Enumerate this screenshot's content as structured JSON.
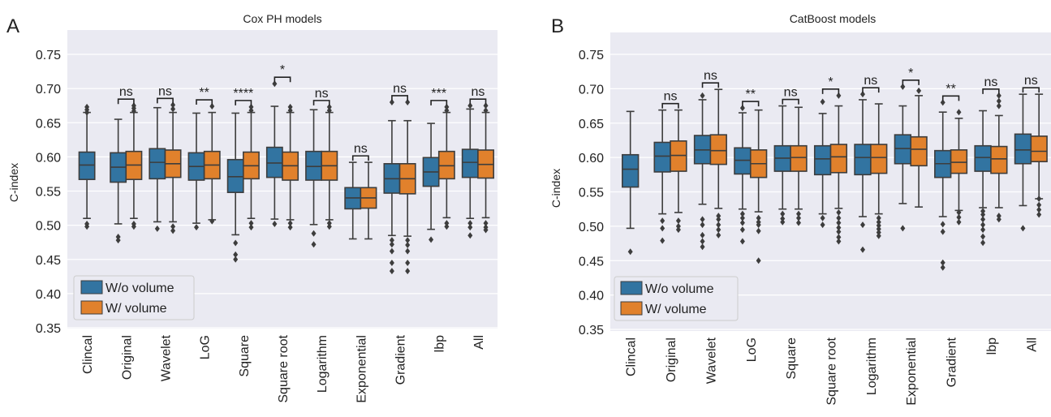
{
  "chart_data": [
    {
      "panel_letter": "A",
      "type": "box",
      "title": "Cox PH models",
      "xlabel": "",
      "ylabel": "C-index",
      "ylim": [
        0.35,
        0.77
      ],
      "yticks": [
        "0.35",
        "0.40",
        "0.45",
        "0.50",
        "0.55",
        "0.60",
        "0.65",
        "0.70",
        "0.75"
      ],
      "grid": true,
      "legend_position": "bottom-left",
      "categories": [
        "Clincal",
        "Original",
        "Wavelet",
        "LoG",
        "Square",
        "Square root",
        "Logarithm",
        "Exponential",
        "Gradient",
        "lbp",
        "All"
      ],
      "significance": [
        "",
        "ns",
        "ns",
        "**",
        "****",
        "*",
        "ns",
        "ns",
        "ns",
        "***",
        "ns"
      ],
      "series": [
        {
          "name": "W/o volume",
          "color": "#3274a1",
          "boxes": [
            {
              "min": 0.51,
              "q1": 0.567,
              "median": 0.588,
              "q3": 0.607,
              "max": 0.665,
              "outliers": [
                0.498,
                0.502,
                0.665,
                0.669,
                0.673
              ]
            },
            {
              "min": 0.502,
              "q1": 0.563,
              "median": 0.585,
              "q3": 0.606,
              "max": 0.655,
              "outliers": [
                0.478,
                0.483
              ]
            },
            {
              "min": 0.505,
              "q1": 0.568,
              "median": 0.592,
              "q3": 0.612,
              "max": 0.672,
              "outliers": [
                0.495
              ]
            },
            {
              "min": 0.503,
              "q1": 0.566,
              "median": 0.586,
              "q3": 0.606,
              "max": 0.664,
              "outliers": [
                0.497
              ]
            },
            {
              "min": 0.486,
              "q1": 0.548,
              "median": 0.571,
              "q3": 0.596,
              "max": 0.664,
              "outliers": [
                0.474,
                0.457,
                0.45
              ]
            },
            {
              "min": 0.509,
              "q1": 0.57,
              "median": 0.591,
              "q3": 0.614,
              "max": 0.674,
              "outliers": [
                0.502,
                0.707
              ]
            },
            {
              "min": 0.501,
              "q1": 0.566,
              "median": 0.586,
              "q3": 0.608,
              "max": 0.669,
              "outliers": [
                0.488,
                0.472
              ]
            },
            {
              "min": 0.48,
              "q1": 0.524,
              "median": 0.54,
              "q3": 0.555,
              "max": 0.592,
              "outliers": []
            },
            {
              "min": 0.485,
              "q1": 0.547,
              "median": 0.568,
              "q3": 0.59,
              "max": 0.653,
              "outliers": [
                0.68,
                0.478,
                0.472,
                0.462,
                0.445,
                0.433
              ]
            },
            {
              "min": 0.494,
              "q1": 0.557,
              "median": 0.578,
              "q3": 0.599,
              "max": 0.649,
              "outliers": [
                0.479
              ]
            },
            {
              "min": 0.51,
              "q1": 0.57,
              "median": 0.592,
              "q3": 0.611,
              "max": 0.67,
              "outliers": [
                0.503,
                0.497,
                0.485,
                0.675
              ]
            }
          ]
        },
        {
          "name": "W/ volume",
          "color": "#e1812c",
          "boxes": [
            null,
            {
              "min": 0.51,
              "q1": 0.567,
              "median": 0.588,
              "q3": 0.608,
              "max": 0.665,
              "outliers": [
                0.498,
                0.502,
                0.667,
                0.671,
                0.675
              ]
            },
            {
              "min": 0.505,
              "q1": 0.57,
              "median": 0.59,
              "q3": 0.61,
              "max": 0.665,
              "outliers": [
                0.492,
                0.498,
                0.67,
                0.676
              ]
            },
            {
              "min": 0.508,
              "q1": 0.568,
              "median": 0.588,
              "q3": 0.608,
              "max": 0.665,
              "outliers": [
                0.674,
                0.506
              ]
            },
            {
              "min": 0.51,
              "q1": 0.568,
              "median": 0.587,
              "q3": 0.607,
              "max": 0.665,
              "outliers": [
                0.497,
                0.503,
                0.668,
                0.673
              ]
            },
            {
              "min": 0.508,
              "q1": 0.566,
              "median": 0.587,
              "q3": 0.607,
              "max": 0.665,
              "outliers": [
                0.497,
                0.503,
                0.668,
                0.673
              ]
            },
            {
              "min": 0.508,
              "q1": 0.566,
              "median": 0.587,
              "q3": 0.608,
              "max": 0.665,
              "outliers": [
                0.498,
                0.503,
                0.668,
                0.673
              ]
            },
            {
              "min": 0.48,
              "q1": 0.525,
              "median": 0.54,
              "q3": 0.555,
              "max": 0.592,
              "outliers": []
            },
            {
              "min": 0.484,
              "q1": 0.546,
              "median": 0.568,
              "q3": 0.59,
              "max": 0.653,
              "outliers": [
                0.68,
                0.478,
                0.471,
                0.462,
                0.445,
                0.433
              ]
            },
            {
              "min": 0.511,
              "q1": 0.568,
              "median": 0.587,
              "q3": 0.608,
              "max": 0.665,
              "outliers": [
                0.498,
                0.503,
                0.668,
                0.673
              ]
            },
            {
              "min": 0.511,
              "q1": 0.569,
              "median": 0.589,
              "q3": 0.61,
              "max": 0.665,
              "outliers": [
                0.497,
                0.503,
                0.493,
                0.668,
                0.675
              ]
            }
          ]
        }
      ]
    },
    {
      "panel_letter": "B",
      "type": "box",
      "title": "CatBoost models",
      "xlabel": "",
      "ylabel": "C-index",
      "ylim": [
        0.35,
        0.77
      ],
      "yticks": [
        "0.35",
        "0.40",
        "0.45",
        "0.50",
        "0.55",
        "0.60",
        "0.65",
        "0.70",
        "0.75"
      ],
      "grid": true,
      "legend_position": "bottom-left",
      "categories": [
        "Clincal",
        "Original",
        "Wavelet",
        "LoG",
        "Square",
        "Square root",
        "Logarithm",
        "Exponential",
        "Gradient",
        "lbp",
        "All"
      ],
      "significance": [
        "",
        "ns",
        "ns",
        "**",
        "ns",
        "*",
        "ns",
        "*",
        "**",
        "ns",
        "ns"
      ],
      "series": [
        {
          "name": "W/o volume",
          "color": "#3274a1",
          "boxes": [
            {
              "min": 0.497,
              "q1": 0.557,
              "median": 0.583,
              "q3": 0.604,
              "max": 0.667,
              "outliers": [
                0.463
              ]
            },
            {
              "min": 0.518,
              "q1": 0.579,
              "median": 0.602,
              "q3": 0.622,
              "max": 0.669,
              "outliers": [
                0.508,
                0.497,
                0.479
              ]
            },
            {
              "min": 0.532,
              "q1": 0.591,
              "median": 0.611,
              "q3": 0.632,
              "max": 0.684,
              "outliers": [
                0.69,
                0.51,
                0.502,
                0.487,
                0.478,
                0.47
              ]
            },
            {
              "min": 0.525,
              "q1": 0.576,
              "median": 0.596,
              "q3": 0.614,
              "max": 0.665,
              "outliers": [
                0.672,
                0.518,
                0.512,
                0.505,
                0.495,
                0.478
              ]
            },
            {
              "min": 0.525,
              "q1": 0.58,
              "median": 0.599,
              "q3": 0.617,
              "max": 0.675,
              "outliers": [
                0.518,
                0.511,
                0.506
              ]
            },
            {
              "min": 0.518,
              "q1": 0.575,
              "median": 0.598,
              "q3": 0.617,
              "max": 0.664,
              "outliers": [
                0.681,
                0.512,
                0.502
              ]
            },
            {
              "min": 0.514,
              "q1": 0.575,
              "median": 0.6,
              "q3": 0.619,
              "max": 0.684,
              "outliers": [
                0.692,
                0.502,
                0.466
              ]
            },
            {
              "min": 0.533,
              "q1": 0.591,
              "median": 0.613,
              "q3": 0.633,
              "max": 0.675,
              "outliers": [
                0.703,
                0.497
              ]
            },
            {
              "min": 0.514,
              "q1": 0.571,
              "median": 0.591,
              "q3": 0.61,
              "max": 0.666,
              "outliers": [
                0.68,
                0.503,
                0.492,
                0.447,
                0.44
              ]
            },
            {
              "min": 0.527,
              "q1": 0.58,
              "median": 0.6,
              "q3": 0.617,
              "max": 0.668,
              "outliers": [
                0.522,
                0.517,
                0.51,
                0.502,
                0.495,
                0.485,
                0.476
              ]
            },
            {
              "min": 0.53,
              "q1": 0.591,
              "median": 0.611,
              "q3": 0.634,
              "max": 0.692,
              "outliers": [
                0.497
              ]
            }
          ]
        },
        {
          "name": "W/ volume",
          "color": "#e1812c",
          "boxes": [
            null,
            {
              "min": 0.52,
              "q1": 0.58,
              "median": 0.603,
              "q3": 0.624,
              "max": 0.669,
              "outliers": [
                0.508,
                0.5,
                0.495
              ]
            },
            {
              "min": 0.526,
              "q1": 0.59,
              "median": 0.61,
              "q3": 0.633,
              "max": 0.699,
              "outliers": [
                0.515,
                0.51,
                0.502,
                0.495,
                0.487
              ]
            },
            {
              "min": 0.521,
              "q1": 0.571,
              "median": 0.591,
              "q3": 0.611,
              "max": 0.669,
              "outliers": [
                0.512,
                0.506,
                0.502,
                0.493,
                0.45
              ]
            },
            {
              "min": 0.525,
              "q1": 0.58,
              "median": 0.6,
              "q3": 0.617,
              "max": 0.673,
              "outliers": [
                0.518,
                0.512,
                0.505
              ]
            },
            {
              "min": 0.526,
              "q1": 0.578,
              "median": 0.601,
              "q3": 0.619,
              "max": 0.675,
              "outliers": [
                0.69,
                0.52,
                0.512,
                0.505,
                0.498,
                0.492,
                0.484,
                0.478
              ]
            },
            {
              "min": 0.518,
              "q1": 0.577,
              "median": 0.6,
              "q3": 0.619,
              "max": 0.678,
              "outliers": [
                0.512,
                0.506,
                0.501,
                0.496,
                0.491,
                0.486
              ]
            },
            {
              "min": 0.528,
              "q1": 0.588,
              "median": 0.612,
              "q3": 0.63,
              "max": 0.69,
              "outliers": [
                0.697
              ]
            },
            {
              "min": 0.523,
              "q1": 0.577,
              "median": 0.593,
              "q3": 0.611,
              "max": 0.657,
              "outliers": [
                0.666,
                0.52,
                0.513,
                0.506
              ]
            },
            {
              "min": 0.527,
              "q1": 0.577,
              "median": 0.598,
              "q3": 0.616,
              "max": 0.661,
              "outliers": [
                0.69,
                0.682,
                0.675,
                0.515,
                0.51
              ]
            },
            {
              "min": 0.54,
              "q1": 0.594,
              "median": 0.609,
              "q3": 0.631,
              "max": 0.692,
              "outliers": [
                0.54,
                0.531,
                0.524,
                0.517
              ]
            }
          ]
        }
      ]
    }
  ]
}
